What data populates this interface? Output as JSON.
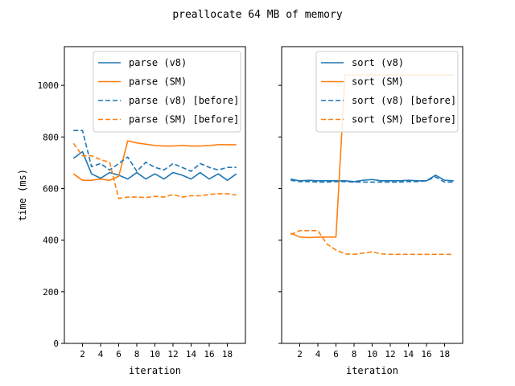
{
  "chart_data": {
    "title": "preallocate 64 MB of memory",
    "subplots": [
      {
        "type": "line",
        "xlabel": "iteration",
        "ylabel": "time (ms)",
        "xlim": [
          0,
          20
        ],
        "ylim": [
          0,
          1150
        ],
        "xticks": [
          2,
          4,
          6,
          8,
          10,
          12,
          14,
          16,
          18
        ],
        "yticks": [
          0,
          200,
          400,
          600,
          800,
          1000
        ],
        "legend": "top-right",
        "x": [
          1,
          2,
          3,
          4,
          5,
          6,
          7,
          8,
          9,
          10,
          11,
          12,
          13,
          14,
          15,
          16,
          17,
          18,
          19
        ],
        "series": [
          {
            "name": "parse (v8)",
            "color": "#1f77b4",
            "dash": false,
            "values": [
              717,
              743,
              657,
              640,
              662,
              652,
              637,
              662,
              637,
              657,
              637,
              662,
              652,
              637,
              662,
              637,
              657,
              632,
              657
            ]
          },
          {
            "name": "parse (SM)",
            "color": "#ff7f0e",
            "dash": false,
            "values": [
              657,
              632,
              632,
              637,
              632,
              647,
              785,
              777,
              772,
              767,
              765,
              765,
              767,
              765,
              765,
              767,
              770,
              770,
              770
            ]
          },
          {
            "name": "parse (v8) [before]",
            "color": "#1f77b4",
            "dash": true,
            "values": [
              825,
              825,
              685,
              697,
              672,
              697,
              722,
              667,
              702,
              682,
              672,
              697,
              682,
              667,
              697,
              682,
              672,
              682,
              682
            ]
          },
          {
            "name": "parse (SM) [before]",
            "color": "#ff7f0e",
            "dash": true,
            "values": [
              775,
              727,
              727,
              712,
              702,
              562,
              567,
              567,
              565,
              570,
              567,
              577,
              567,
              572,
              572,
              577,
              580,
              580,
              575
            ]
          }
        ]
      },
      {
        "type": "line",
        "xlabel": "iteration",
        "ylabel": "",
        "xlim": [
          0,
          20
        ],
        "ylim": [
          0,
          1150
        ],
        "xticks": [
          2,
          4,
          6,
          8,
          10,
          12,
          14,
          16,
          18
        ],
        "yticks": [
          0,
          200,
          400,
          600,
          800,
          1000
        ],
        "legend": "top-right",
        "x": [
          1,
          2,
          3,
          4,
          5,
          6,
          7,
          8,
          9,
          10,
          11,
          12,
          13,
          14,
          15,
          16,
          17,
          18,
          19
        ],
        "series": [
          {
            "name": "sort (v8)",
            "color": "#1f77b4",
            "dash": false,
            "values": [
              637,
              630,
              632,
              630,
              630,
              630,
              630,
              627,
              632,
              635,
              630,
              630,
              630,
              632,
              630,
              630,
              652,
              632,
              630
            ]
          },
          {
            "name": "sort (SM)",
            "color": "#ff7f0e",
            "dash": false,
            "values": [
              427,
              412,
              410,
              412,
              412,
              412,
              1040,
              1040,
              1040,
              1040,
              1040,
              1040,
              1040,
              1040,
              1040,
              1040,
              1040,
              1040,
              1040
            ]
          },
          {
            "name": "sort (v8) [before]",
            "color": "#1f77b4",
            "dash": true,
            "values": [
              632,
              627,
              627,
              625,
              625,
              627,
              627,
              625,
              625,
              625,
              625,
              625,
              625,
              627,
              627,
              630,
              645,
              625,
              625
            ]
          },
          {
            "name": "sort (SM) [before]",
            "color": "#ff7f0e",
            "dash": true,
            "values": [
              422,
              437,
              437,
              437,
              385,
              362,
              347,
              345,
              350,
              355,
              347,
              345,
              345,
              345,
              345,
              345,
              345,
              345,
              345
            ]
          }
        ]
      }
    ]
  }
}
